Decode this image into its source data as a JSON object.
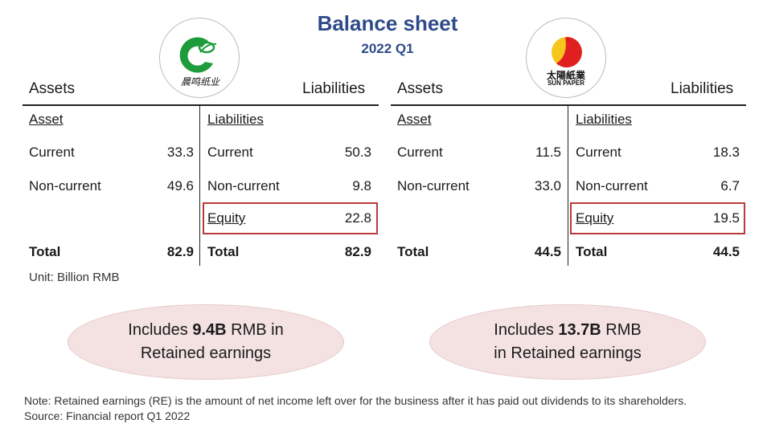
{
  "title": "Balance sheet",
  "subtitle": "2022 Q1",
  "left_company": {
    "logo_text": "晨鸣纸业",
    "header_assets": "Assets",
    "header_liabilities": "Liabilities",
    "asset_heading": "Asset",
    "liab_heading": "Liabilities",
    "rows": {
      "current_label": "Current",
      "current_asset": "33.3",
      "current_liab_label": "Current",
      "current_liab": "50.3",
      "noncurrent_label": "Non-current",
      "noncurrent_asset": "49.6",
      "noncurrent_liab_label": "Non-current",
      "noncurrent_liab": "9.8",
      "equity_label": "Equity",
      "equity": "22.8",
      "total_label": "Total",
      "total_asset": "82.9",
      "total_liab_label": "Total",
      "total_liab": "82.9"
    },
    "bubble_pre": "Includes ",
    "bubble_bold": "9.4B",
    "bubble_post": " RMB in",
    "bubble_line2": "Retained earnings"
  },
  "right_company": {
    "logo_text": "太陽紙業",
    "logo_sub": "SUN PAPER",
    "header_assets": "Assets",
    "header_liabilities": "Liabilities",
    "asset_heading": "Asset",
    "liab_heading": "Liabilities",
    "rows": {
      "current_label": "Current",
      "current_asset": "11.5",
      "current_liab_label": "Current",
      "current_liab": "18.3",
      "noncurrent_label": "Non-current",
      "noncurrent_asset": "33.0",
      "noncurrent_liab_label": "Non-current",
      "noncurrent_liab": "6.7",
      "equity_label": "Equity",
      "equity": "19.5",
      "total_label": "Total",
      "total_asset": "44.5",
      "total_liab_label": "Total",
      "total_liab": "44.5"
    },
    "bubble_pre": "Includes ",
    "bubble_bold": "13.7B",
    "bubble_post": " RMB",
    "bubble_line2": "in Retained earnings"
  },
  "unit": "Unit: Billion RMB",
  "note_line1": "Note: Retained earnings (RE) is the amount of net income left over for the business after it has paid out dividends to its shareholders.",
  "source": "Source: Financial report Q1 2022",
  "colors": {
    "title": "#2f4a8a",
    "equity_box": "#b83a3a",
    "bubble": "#f4e2e2",
    "logo_green": "#1e9b3a",
    "logo_red": "#e02020",
    "logo_yellow": "#f6c61c"
  }
}
